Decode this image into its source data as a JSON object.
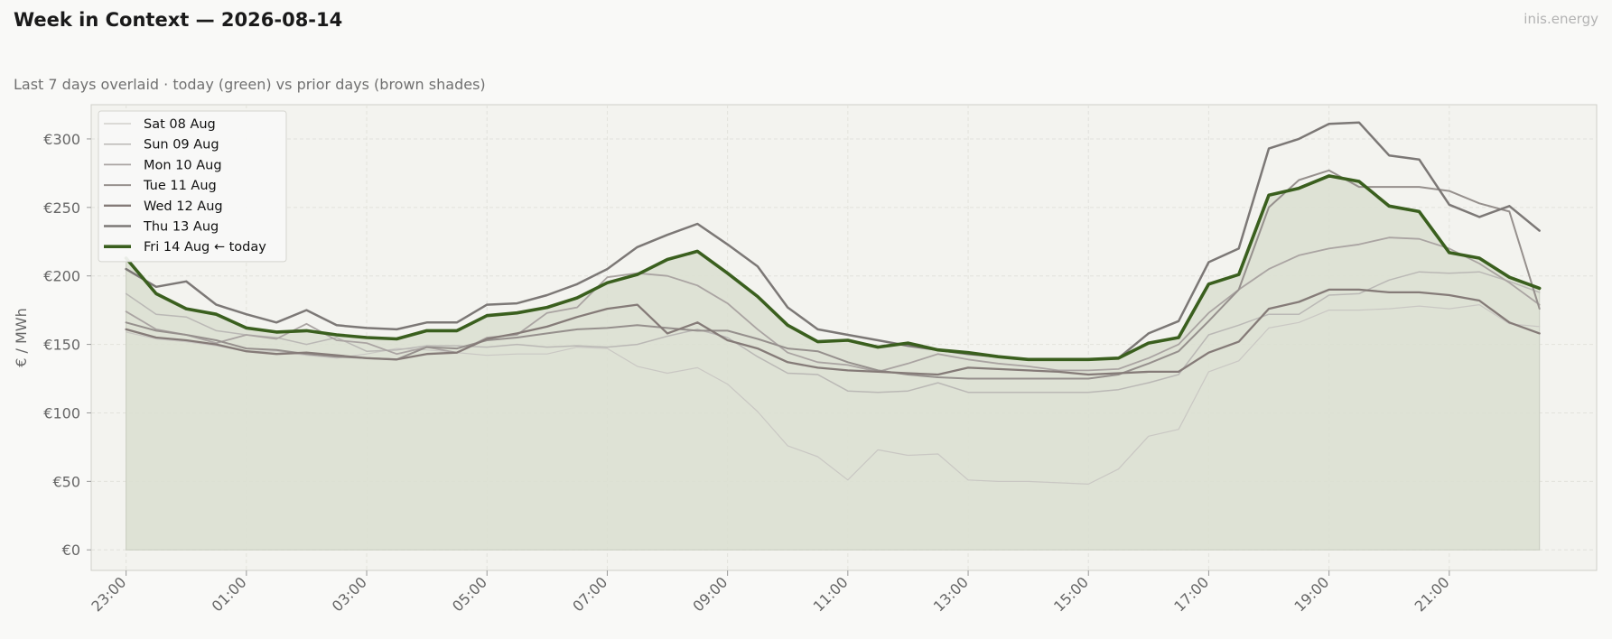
{
  "header": {
    "title": "Week in Context — 2026-08-14",
    "subtitle": "Last 7 days overlaid  ·  today (green) vs prior days (brown shades)",
    "brand": "inis.energy"
  },
  "colors": {
    "today": "#3a5f1e",
    "today_fill": "#dce0d2",
    "axes_bg": "#f3f3ef",
    "grid": "#e2e2dc"
  },
  "chart_data": {
    "type": "line",
    "ylabel": "€ / MWh",
    "ylim": [
      -15,
      325
    ],
    "yticks": [
      0,
      50,
      100,
      150,
      200,
      250,
      300
    ],
    "ytick_labels": [
      "€0",
      "€50",
      "€100",
      "€150",
      "€200",
      "€250",
      "€300"
    ],
    "x_start_hour": 23,
    "x_step_hours": 0.5,
    "xlim": [
      22.42,
      47.45
    ],
    "xticks": [
      23,
      25,
      27,
      29,
      31,
      33,
      35,
      37,
      39,
      41,
      43,
      45
    ],
    "xtick_labels": [
      "23:00",
      "01:00",
      "03:00",
      "05:00",
      "07:00",
      "09:00",
      "11:00",
      "13:00",
      "15:00",
      "17:00",
      "19:00",
      "21:00"
    ],
    "grid": true,
    "legend_position": "top-left",
    "series": [
      {
        "name": "Sat 08 Aug",
        "color": "#c9c7c3",
        "width": 1.2,
        "values": [
          159,
          154,
          152,
          149,
          145,
          145,
          142,
          140,
          143,
          147,
          146,
          144,
          142,
          143,
          143,
          148,
          147,
          134,
          129,
          133,
          121,
          101,
          76,
          68,
          51,
          73,
          69,
          70,
          51,
          50,
          50,
          49,
          48,
          59,
          83,
          88,
          130,
          138,
          162,
          166,
          175,
          175,
          176,
          178,
          176,
          179,
          165,
          163
        ]
      },
      {
        "name": "Sun 09 Aug",
        "color": "#bab8b5",
        "width": 1.5,
        "values": [
          187,
          172,
          170,
          160,
          157,
          155,
          150,
          155,
          145,
          146,
          149,
          149,
          148,
          150,
          148,
          149,
          148,
          150,
          156,
          161,
          155,
          141,
          129,
          128,
          116,
          115,
          116,
          122,
          115,
          115,
          115,
          115,
          115,
          117,
          122,
          128,
          157,
          164,
          172,
          172,
          186,
          187,
          197,
          203,
          202,
          203,
          196,
          188
        ]
      },
      {
        "name": "Mon 10 Aug",
        "color": "#aaa4a2",
        "width": 1.8,
        "values": [
          174,
          161,
          157,
          151,
          157,
          154,
          165,
          153,
          151,
          143,
          148,
          144,
          155,
          157,
          173,
          177,
          199,
          202,
          200,
          193,
          180,
          161,
          144,
          137,
          135,
          130,
          136,
          143,
          139,
          136,
          134,
          131,
          131,
          132,
          140,
          150,
          173,
          190,
          205,
          215,
          220,
          223,
          228,
          227,
          220,
          209,
          195,
          179
        ]
      },
      {
        "name": "Tue 11 Aug",
        "color": "#96908d",
        "width": 2.0,
        "values": [
          166,
          160,
          157,
          153,
          147,
          146,
          143,
          141,
          140,
          139,
          148,
          147,
          153,
          155,
          158,
          161,
          162,
          164,
          162,
          160,
          160,
          154,
          147,
          145,
          137,
          131,
          128,
          126,
          125,
          125,
          125,
          125,
          125,
          128,
          136,
          145,
          167,
          190,
          250,
          270,
          277,
          265,
          265,
          265,
          262,
          253,
          247,
          176
        ]
      },
      {
        "name": "Wed 12 Aug",
        "color": "#857b78",
        "width": 2.3,
        "values": [
          161,
          155,
          153,
          150,
          145,
          143,
          144,
          142,
          140,
          139,
          143,
          144,
          154,
          158,
          163,
          170,
          176,
          179,
          158,
          166,
          153,
          147,
          137,
          133,
          131,
          130,
          129,
          128,
          133,
          132,
          131,
          130,
          128,
          129,
          130,
          130,
          144,
          152,
          176,
          181,
          190,
          190,
          188,
          188,
          186,
          182,
          166,
          158
        ]
      },
      {
        "name": "Thu 13 Aug",
        "color": "#7c7876",
        "width": 2.5,
        "values": [
          205,
          192,
          196,
          179,
          172,
          166,
          175,
          164,
          162,
          161,
          166,
          166,
          179,
          180,
          186,
          194,
          205,
          221,
          230,
          238,
          223,
          207,
          177,
          161,
          157,
          153,
          149,
          146,
          143,
          141,
          139,
          139,
          139,
          140,
          158,
          167,
          210,
          220,
          293,
          300,
          311,
          312,
          288,
          285,
          252,
          243,
          251,
          233
        ]
      },
      {
        "name": "Fri 14 Aug  ← today",
        "color": "#3a5f1e",
        "width": 3.6,
        "today": true,
        "values": [
          213,
          187,
          176,
          172,
          162,
          159,
          160,
          157,
          155,
          154,
          160,
          160,
          171,
          173,
          177,
          184,
          195,
          201,
          212,
          218,
          202,
          185,
          164,
          152,
          153,
          148,
          151,
          146,
          144,
          141,
          139,
          139,
          139,
          140,
          151,
          155,
          194,
          201,
          259,
          264,
          273,
          269,
          251,
          247,
          217,
          213,
          199,
          191
        ]
      }
    ]
  }
}
